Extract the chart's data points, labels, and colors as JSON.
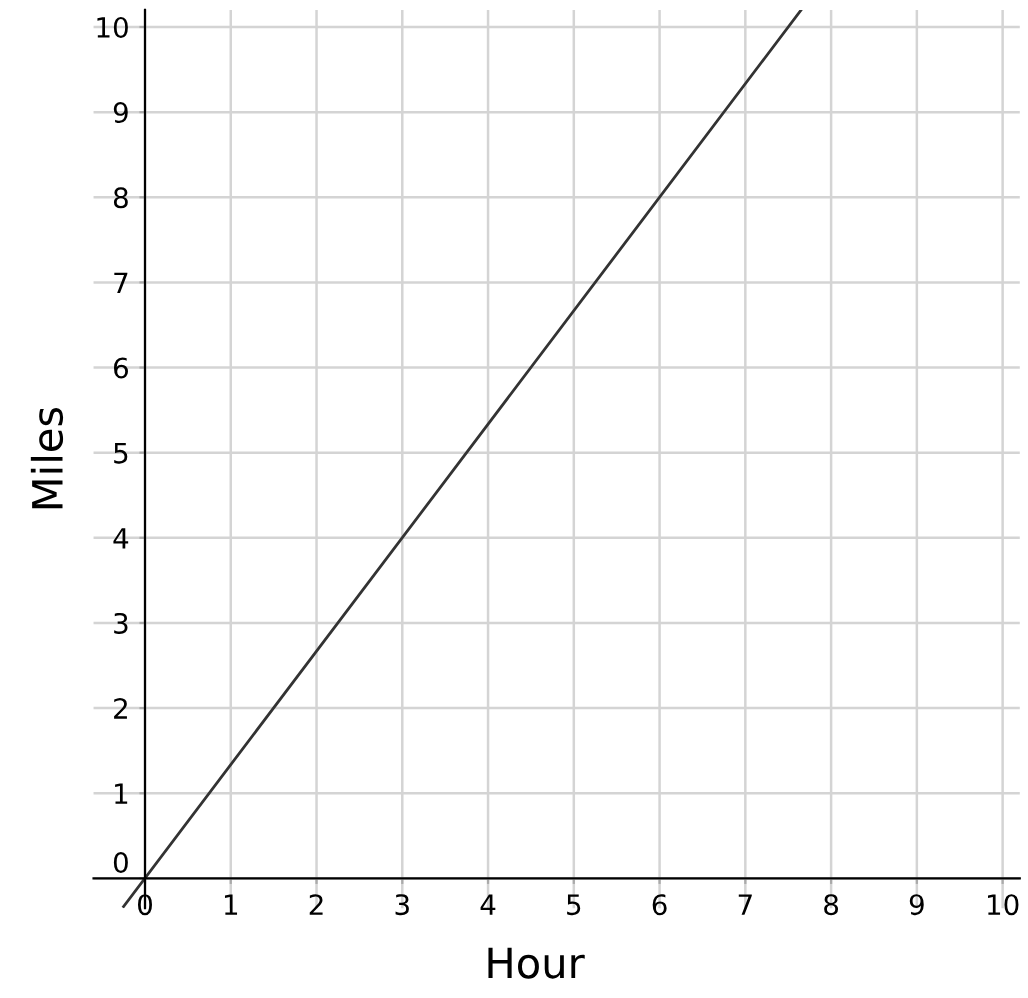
{
  "chart_data": {
    "type": "line",
    "xlabel": "Hour",
    "ylabel": "Miles",
    "series": [
      {
        "color": "#333333",
        "x": [
          -0.25,
          7.65
        ],
        "values": [
          -0.33,
          10.2
        ]
      }
    ],
    "xlim": [
      -0.6,
      10.2
    ],
    "ylim": [
      -0.35,
      10.2
    ],
    "xticks": [
      0,
      1,
      2,
      3,
      4,
      5,
      6,
      7,
      8,
      9,
      10
    ],
    "yticks": [
      0,
      1,
      2,
      3,
      4,
      5,
      6,
      7,
      8,
      9,
      10
    ],
    "grid": true,
    "marker": "none",
    "line_style": "solid"
  }
}
